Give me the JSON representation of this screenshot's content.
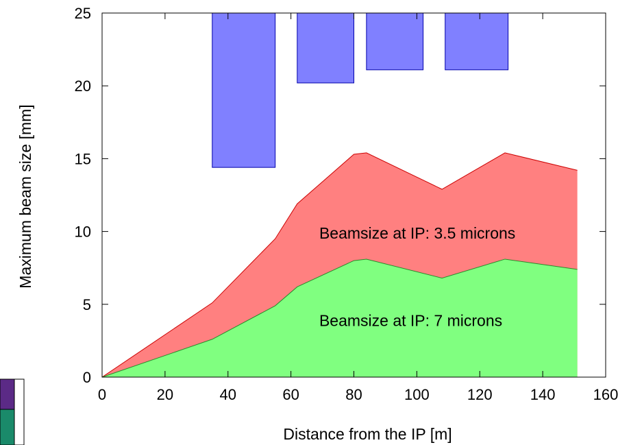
{
  "chart_data": {
    "type": "area",
    "xlabel": "Distance from the IP [m]",
    "ylabel": "Maximum beam size [mm]",
    "xlim": [
      0,
      160
    ],
    "ylim": [
      0,
      25
    ],
    "x_ticks": [
      0,
      20,
      40,
      60,
      80,
      100,
      120,
      140,
      160
    ],
    "y_ticks": [
      0,
      5,
      10,
      15,
      20,
      25
    ],
    "grid": false,
    "series": [
      {
        "color": "#ff8080",
        "x": [
          0,
          35,
          55,
          62,
          80,
          84,
          108,
          128,
          151
        ],
        "values": [
          0,
          5.1,
          9.5,
          11.9,
          15.3,
          15.4,
          12.9,
          15.4,
          14.2
        ]
      },
      {
        "color": "#80ff80",
        "x": [
          0,
          35,
          55,
          62,
          80,
          84,
          108,
          128,
          151
        ],
        "values": [
          0,
          2.6,
          4.9,
          6.2,
          8.0,
          8.1,
          6.8,
          8.1,
          7.4
        ]
      }
    ],
    "apertures": {
      "color": "#8080ff",
      "items": [
        {
          "x0": 35,
          "x1": 55,
          "y0": 14.4,
          "y1": 25
        },
        {
          "x0": 62,
          "x1": 80,
          "y0": 20.2,
          "y1": 25
        },
        {
          "x0": 84,
          "x1": 102,
          "y0": 21.1,
          "y1": 25
        },
        {
          "x0": 109,
          "x1": 129,
          "y0": 21.1,
          "y1": 25
        }
      ]
    },
    "annotations": [
      {
        "text": "Beamsize at IP: 3.5 microns",
        "x": 69,
        "y": 9.5
      },
      {
        "text": "Beamsize at IP: 7 microns",
        "x": 69,
        "y": 3.5
      }
    ]
  },
  "palette_key": [
    {
      "color": "#5b2a86"
    },
    {
      "color": "#1a8a6a"
    }
  ]
}
